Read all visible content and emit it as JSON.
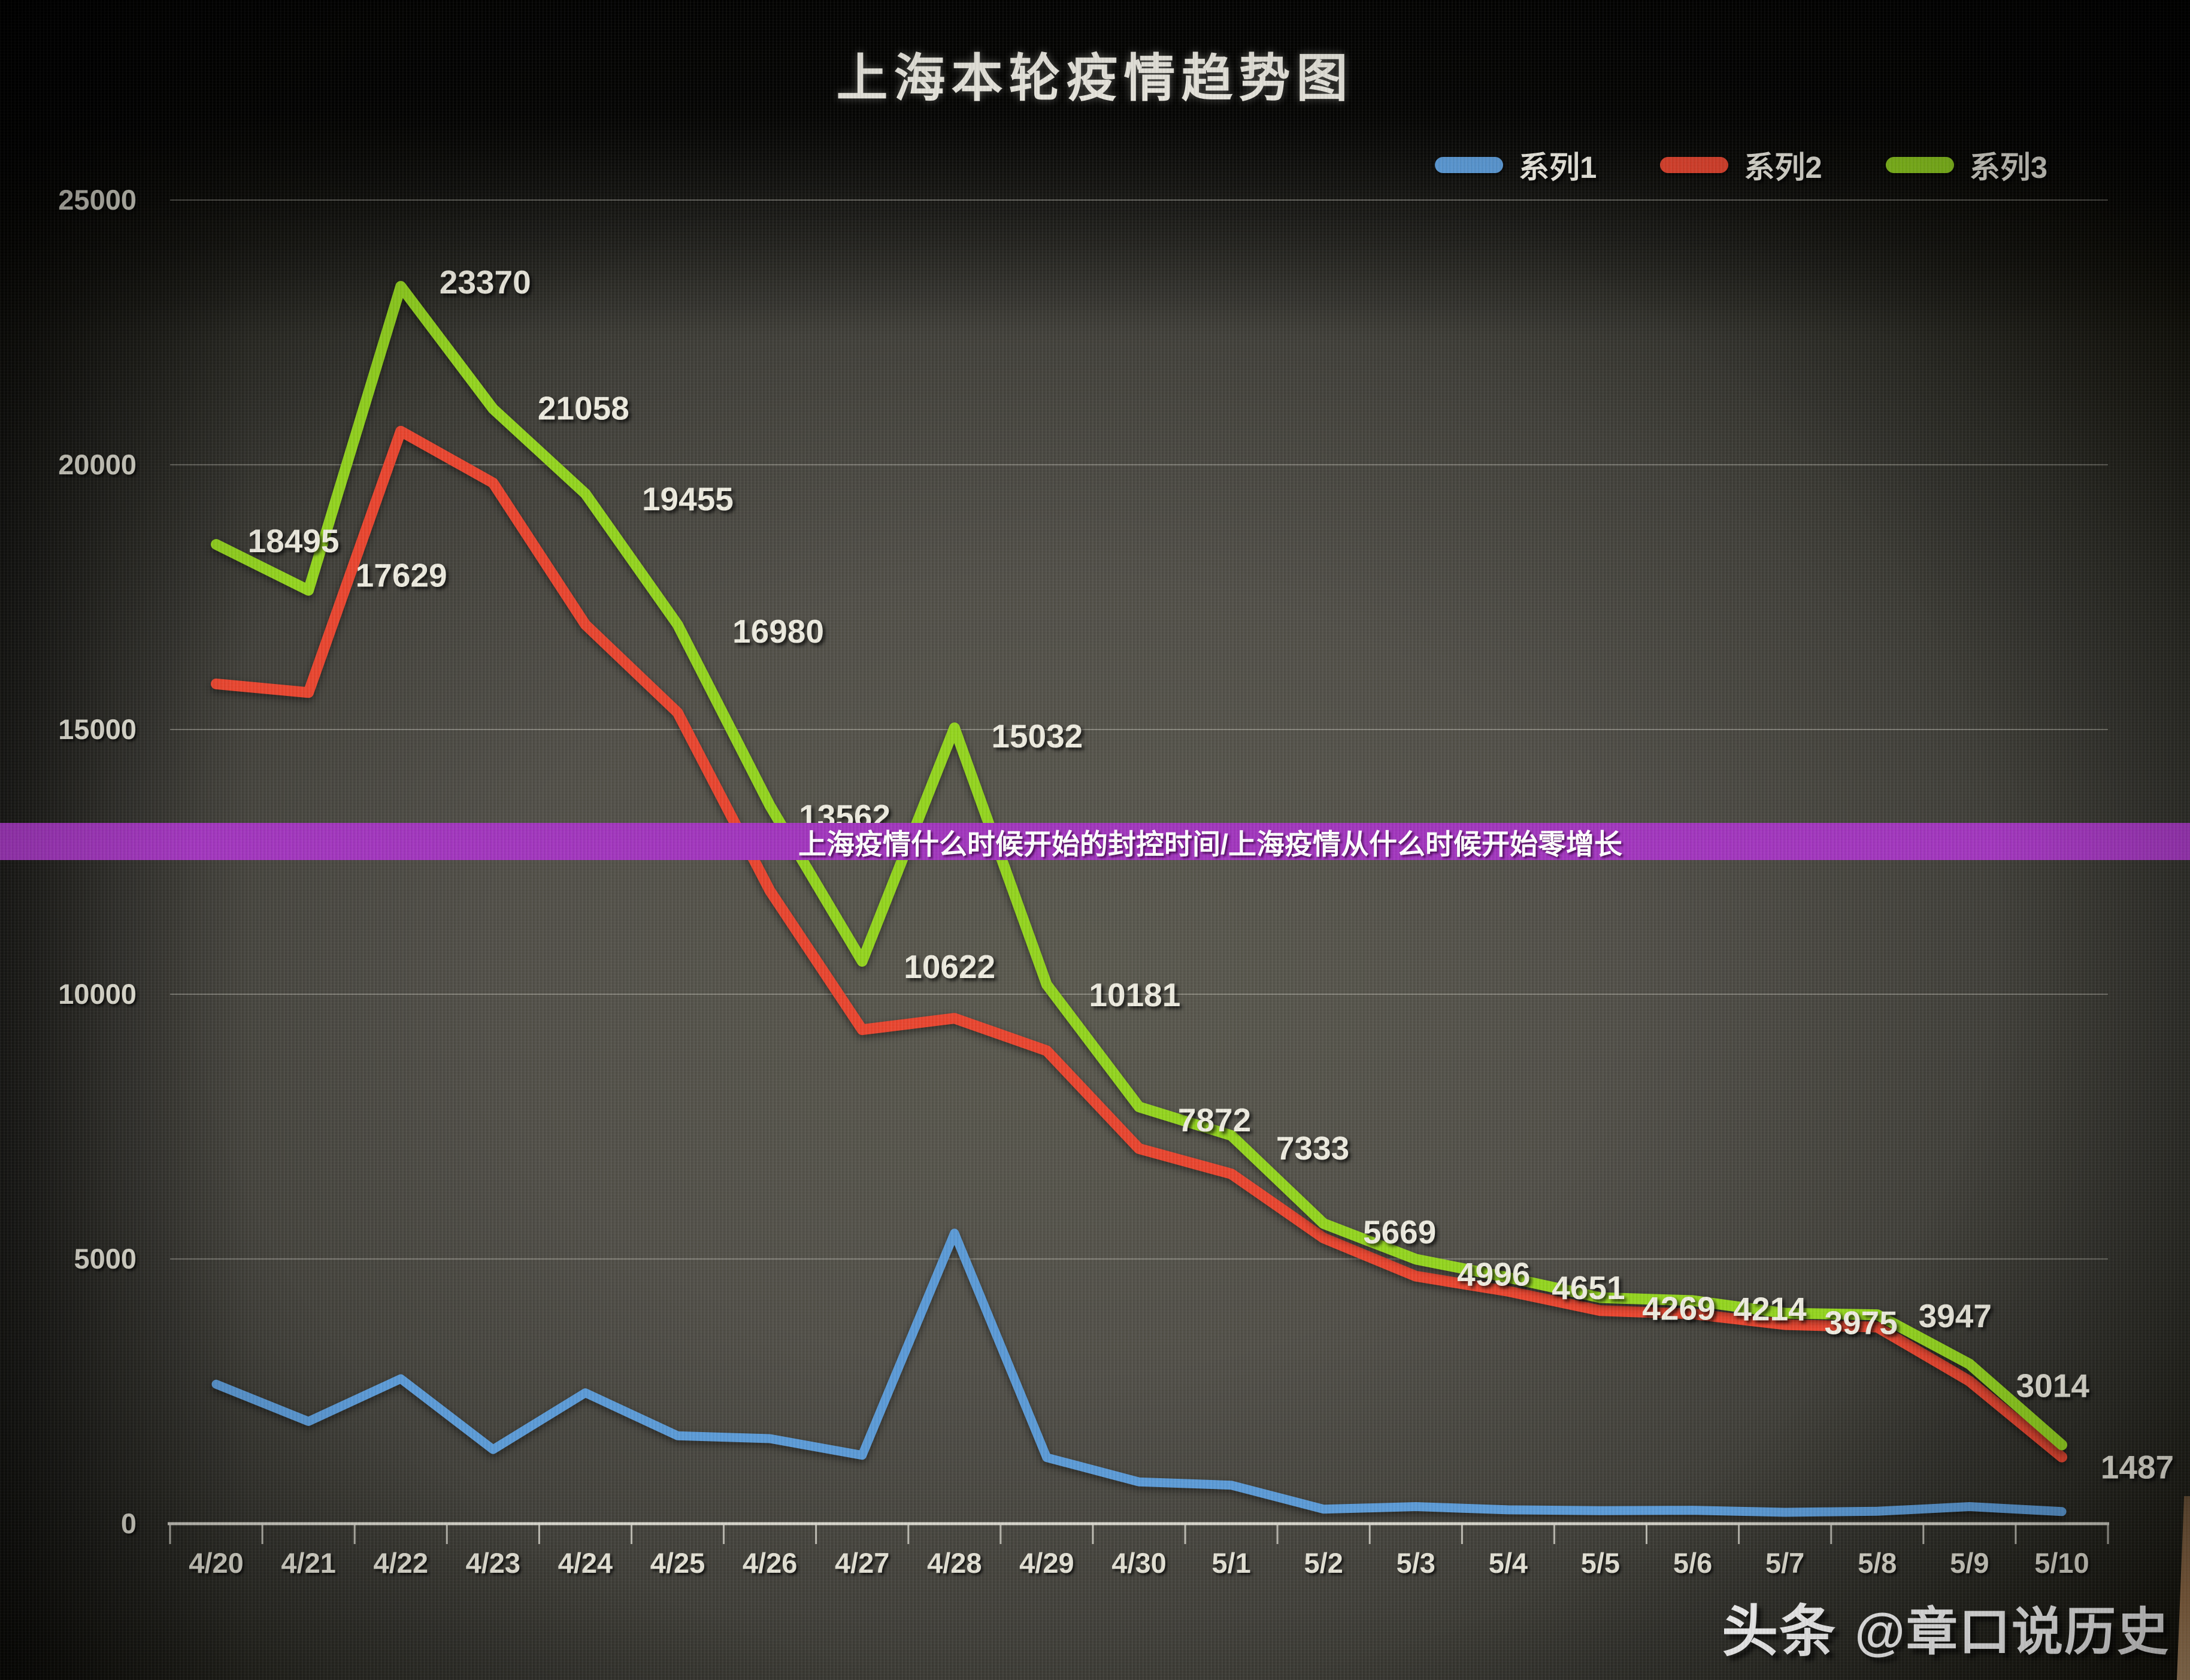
{
  "title": "上海本轮疫情趋势图",
  "legend": {
    "items": [
      {
        "label": "系列1",
        "color": "#5b9ad6"
      },
      {
        "label": "系列2",
        "color": "#e8452f"
      },
      {
        "label": "系列3",
        "color": "#93d41f"
      }
    ]
  },
  "banner": {
    "text": "上海疫情什么时候开始的封控时间/上海疫情从什么时候开始零增长",
    "bg": "#a136bd"
  },
  "watermark": {
    "prefix": "头条",
    "handle": "@章口说历史"
  },
  "colors": {
    "grid": "#d8d6cc",
    "axis": "#e6e4da",
    "blue": "#5b9ad6",
    "red": "#e8452f",
    "green": "#93d41f"
  },
  "chart_data": {
    "type": "line",
    "title": "上海本轮疫情趋势图",
    "x": [
      "4/20",
      "4/21",
      "4/22",
      "4/23",
      "4/24",
      "4/25",
      "4/26",
      "4/27",
      "4/28",
      "4/29",
      "4/30",
      "5/1",
      "5/2",
      "5/3",
      "5/4",
      "5/5",
      "5/6",
      "5/7",
      "5/8",
      "5/9",
      "5/10"
    ],
    "ylim": [
      0,
      25000
    ],
    "yticks": [
      0,
      5000,
      10000,
      15000,
      20000,
      25000
    ],
    "grid": true,
    "legend_position": "top-right",
    "series": [
      {
        "name": "系列1",
        "color": "#5b9ad6",
        "stroke_width": 15,
        "labeled": false,
        "values": [
          2634,
          1931,
          2736,
          1401,
          2472,
          1661,
          1606,
          1292,
          5487,
          1249,
          788,
          727,
          274,
          322,
          261,
          245,
          253,
          215,
          234,
          322,
          228
        ]
      },
      {
        "name": "系列2",
        "color": "#e8452f",
        "stroke_width": 18,
        "labeled": false,
        "values": [
          15861,
          15698,
          20634,
          19657,
          16983,
          15319,
          11956,
          9330,
          9545,
          8932,
          7084,
          6606,
          5395,
          4674,
          4390,
          4024,
          3961,
          3760,
          3713,
          2692,
          1259
        ]
      },
      {
        "name": "系列3",
        "color": "#93d41f",
        "stroke_width": 18,
        "labeled": true,
        "values": [
          18495,
          17629,
          23370,
          21058,
          19455,
          16980,
          13562,
          10622,
          15032,
          10181,
          7872,
          7333,
          5669,
          4996,
          4651,
          4269,
          4214,
          3975,
          3947,
          3014,
          1487
        ],
        "data_labels": [
          "18495",
          "17629",
          "23370",
          "21058",
          "19455",
          "16980",
          "13562",
          "10622",
          "15032",
          "10181",
          "7872",
          "7333",
          "5669",
          "4996",
          "4651",
          "4269",
          "4214",
          "3975",
          "3947",
          "3014",
          "1487"
        ]
      }
    ]
  }
}
